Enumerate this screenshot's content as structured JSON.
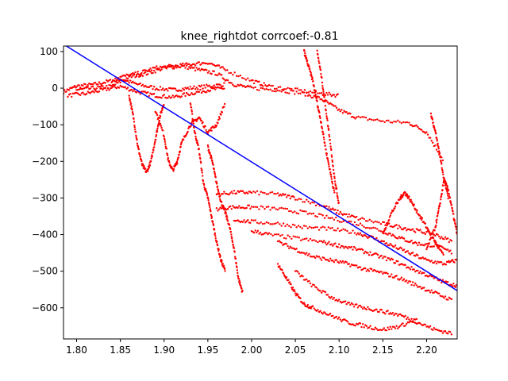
{
  "chart_data": {
    "type": "scatter",
    "title": "knee_rightdot corrcoef:-0.81",
    "xlabel": "",
    "ylabel": "",
    "xlim": [
      1.785,
      2.235
    ],
    "ylim": [
      -685,
      115
    ],
    "x_ticks": [
      1.8,
      1.85,
      1.9,
      1.95,
      2.0,
      2.05,
      2.1,
      2.15,
      2.2
    ],
    "x_tick_labels": [
      "1.80",
      "1.85",
      "1.90",
      "1.95",
      "2.00",
      "2.05",
      "2.10",
      "2.15",
      "2.20"
    ],
    "y_ticks": [
      100,
      0,
      -100,
      -200,
      -300,
      -400,
      -500,
      -600
    ],
    "y_tick_labels": [
      "100",
      "0",
      "−100",
      "−200",
      "−300",
      "−400",
      "−500",
      "−600"
    ],
    "grid": false,
    "colors": {
      "points": "#ff0000",
      "fit_line": "#0000ff",
      "axes": "#000000"
    },
    "fit_line": {
      "x": [
        1.785,
        2.235
      ],
      "y": [
        120,
        -553
      ]
    },
    "point_traces": [
      [
        [
          1.785,
          -10
        ],
        [
          1.8,
          5
        ],
        [
          1.82,
          10
        ],
        [
          1.84,
          20
        ],
        [
          1.85,
          25
        ],
        [
          1.87,
          10
        ],
        [
          1.89,
          0
        ],
        [
          1.91,
          -5
        ],
        [
          1.93,
          0
        ],
        [
          1.95,
          5
        ],
        [
          1.97,
          10
        ]
      ],
      [
        [
          1.79,
          -20
        ],
        [
          1.81,
          -15
        ],
        [
          1.83,
          -5
        ],
        [
          1.85,
          5
        ],
        [
          1.87,
          -10
        ],
        [
          1.89,
          -20
        ],
        [
          1.91,
          -25
        ],
        [
          1.93,
          -15
        ],
        [
          1.95,
          -5
        ],
        [
          1.97,
          0
        ]
      ],
      [
        [
          1.8,
          -5
        ],
        [
          1.82,
          0
        ],
        [
          1.84,
          5
        ],
        [
          1.86,
          30
        ],
        [
          1.88,
          40
        ],
        [
          1.9,
          55
        ],
        [
          1.92,
          60
        ],
        [
          1.94,
          50
        ],
        [
          1.96,
          40
        ],
        [
          1.98,
          10
        ],
        [
          2.0,
          0
        ],
        [
          2.03,
          -5
        ],
        [
          2.06,
          -15
        ],
        [
          2.08,
          -30
        ],
        [
          2.1,
          -60
        ],
        [
          2.12,
          -80
        ],
        [
          2.15,
          -90
        ],
        [
          2.18,
          -95
        ],
        [
          2.2,
          -120
        ],
        [
          2.22,
          -200
        ]
      ],
      [
        [
          1.85,
          30
        ],
        [
          1.87,
          40
        ],
        [
          1.89,
          55
        ],
        [
          1.91,
          60
        ],
        [
          1.93,
          65
        ],
        [
          1.95,
          70
        ],
        [
          1.97,
          50
        ],
        [
          2.0,
          20
        ],
        [
          2.02,
          5
        ],
        [
          2.05,
          -5
        ],
        [
          2.08,
          -15
        ],
        [
          2.1,
          -20
        ]
      ],
      [
        [
          1.86,
          -20
        ],
        [
          1.865,
          -80
        ],
        [
          1.87,
          -160
        ],
        [
          1.875,
          -210
        ],
        [
          1.88,
          -230
        ],
        [
          1.885,
          -200
        ],
        [
          1.89,
          -140
        ],
        [
          1.895,
          -80
        ],
        [
          1.9,
          -40
        ]
      ],
      [
        [
          1.89,
          -60
        ],
        [
          1.9,
          -130
        ],
        [
          1.905,
          -200
        ],
        [
          1.91,
          -225
        ],
        [
          1.915,
          -200
        ],
        [
          1.92,
          -150
        ],
        [
          1.93,
          -100
        ],
        [
          1.94,
          -80
        ],
        [
          1.95,
          -120
        ],
        [
          1.96,
          -100
        ],
        [
          1.97,
          -40
        ]
      ],
      [
        [
          1.93,
          -40
        ],
        [
          1.935,
          -120
        ],
        [
          1.94,
          -170
        ],
        [
          1.945,
          -260
        ],
        [
          1.95,
          -300
        ],
        [
          1.955,
          -360
        ],
        [
          1.96,
          -420
        ],
        [
          1.965,
          -470
        ],
        [
          1.97,
          -500
        ]
      ],
      [
        [
          1.95,
          -160
        ],
        [
          1.955,
          -200
        ],
        [
          1.96,
          -260
        ],
        [
          1.965,
          -310
        ],
        [
          1.97,
          -340
        ],
        [
          1.975,
          -380
        ],
        [
          1.98,
          -440
        ],
        [
          1.985,
          -520
        ],
        [
          1.99,
          -560
        ]
      ],
      [
        [
          1.96,
          -290
        ],
        [
          1.98,
          -285
        ],
        [
          2.0,
          -285
        ],
        [
          2.03,
          -290
        ],
        [
          2.05,
          -300
        ],
        [
          2.08,
          -320
        ],
        [
          2.1,
          -340
        ],
        [
          2.12,
          -355
        ],
        [
          2.15,
          -370
        ],
        [
          2.17,
          -380
        ],
        [
          2.19,
          -390
        ],
        [
          2.21,
          -400
        ],
        [
          2.23,
          -420
        ]
      ],
      [
        [
          1.96,
          -330
        ],
        [
          1.98,
          -325
        ],
        [
          2.0,
          -325
        ],
        [
          2.03,
          -330
        ],
        [
          2.06,
          -340
        ],
        [
          2.09,
          -355
        ],
        [
          2.12,
          -370
        ],
        [
          2.15,
          -390
        ],
        [
          2.17,
          -410
        ],
        [
          2.19,
          -425
        ],
        [
          2.21,
          -430
        ],
        [
          2.23,
          -450
        ]
      ],
      [
        [
          1.98,
          -360
        ],
        [
          2.0,
          -365
        ],
        [
          2.03,
          -370
        ],
        [
          2.06,
          -380
        ],
        [
          2.09,
          -385
        ],
        [
          2.12,
          -395
        ],
        [
          2.14,
          -410
        ],
        [
          2.16,
          -430
        ],
        [
          2.18,
          -450
        ],
        [
          2.2,
          -470
        ],
        [
          2.22,
          -480
        ],
        [
          2.235,
          -470
        ]
      ],
      [
        [
          2.0,
          -390
        ],
        [
          2.02,
          -400
        ],
        [
          2.05,
          -410
        ],
        [
          2.08,
          -420
        ],
        [
          2.1,
          -430
        ],
        [
          2.12,
          -440
        ],
        [
          2.14,
          -455
        ],
        [
          2.16,
          -470
        ],
        [
          2.18,
          -490
        ],
        [
          2.2,
          -510
        ],
        [
          2.22,
          -530
        ],
        [
          2.235,
          -540
        ]
      ],
      [
        [
          2.03,
          -420
        ],
        [
          2.05,
          -440
        ],
        [
          2.07,
          -460
        ],
        [
          2.09,
          -470
        ],
        [
          2.11,
          -480
        ],
        [
          2.13,
          -495
        ],
        [
          2.15,
          -505
        ],
        [
          2.17,
          -520
        ],
        [
          2.19,
          -540
        ],
        [
          2.21,
          -560
        ],
        [
          2.23,
          -580
        ]
      ],
      [
        [
          2.03,
          -480
        ],
        [
          2.04,
          -520
        ],
        [
          2.05,
          -560
        ],
        [
          2.06,
          -590
        ],
        [
          2.07,
          -600
        ],
        [
          2.09,
          -620
        ],
        [
          2.11,
          -640
        ],
        [
          2.13,
          -650
        ],
        [
          2.15,
          -660
        ],
        [
          2.17,
          -650
        ],
        [
          2.19,
          -630
        ]
      ],
      [
        [
          2.05,
          -500
        ],
        [
          2.07,
          -540
        ],
        [
          2.09,
          -570
        ],
        [
          2.11,
          -590
        ],
        [
          2.13,
          -600
        ],
        [
          2.15,
          -610
        ],
        [
          2.17,
          -620
        ],
        [
          2.19,
          -640
        ],
        [
          2.21,
          -660
        ],
        [
          2.23,
          -670
        ]
      ],
      [
        [
          2.15,
          -400
        ],
        [
          2.16,
          -340
        ],
        [
          2.17,
          -300
        ],
        [
          2.175,
          -285
        ],
        [
          2.18,
          -300
        ],
        [
          2.19,
          -340
        ],
        [
          2.2,
          -380
        ],
        [
          2.21,
          -420
        ],
        [
          2.22,
          -460
        ]
      ],
      [
        [
          2.2,
          -440
        ],
        [
          2.21,
          -380
        ],
        [
          2.215,
          -320
        ],
        [
          2.22,
          -250
        ],
        [
          2.225,
          -280
        ],
        [
          2.23,
          -340
        ],
        [
          2.235,
          -400
        ]
      ],
      [
        [
          2.06,
          100
        ],
        [
          2.065,
          60
        ],
        [
          2.07,
          20
        ],
        [
          2.075,
          -40
        ],
        [
          2.08,
          -100
        ],
        [
          2.085,
          -170
        ],
        [
          2.09,
          -230
        ],
        [
          2.095,
          -290
        ]
      ],
      [
        [
          2.075,
          100
        ],
        [
          2.08,
          30
        ],
        [
          2.085,
          -60
        ],
        [
          2.09,
          -150
        ],
        [
          2.095,
          -250
        ],
        [
          2.1,
          -320
        ]
      ],
      [
        [
          2.205,
          -70
        ],
        [
          2.21,
          -120
        ],
        [
          2.215,
          -180
        ],
        [
          2.22,
          -250
        ],
        [
          2.225,
          -300
        ]
      ]
    ]
  }
}
